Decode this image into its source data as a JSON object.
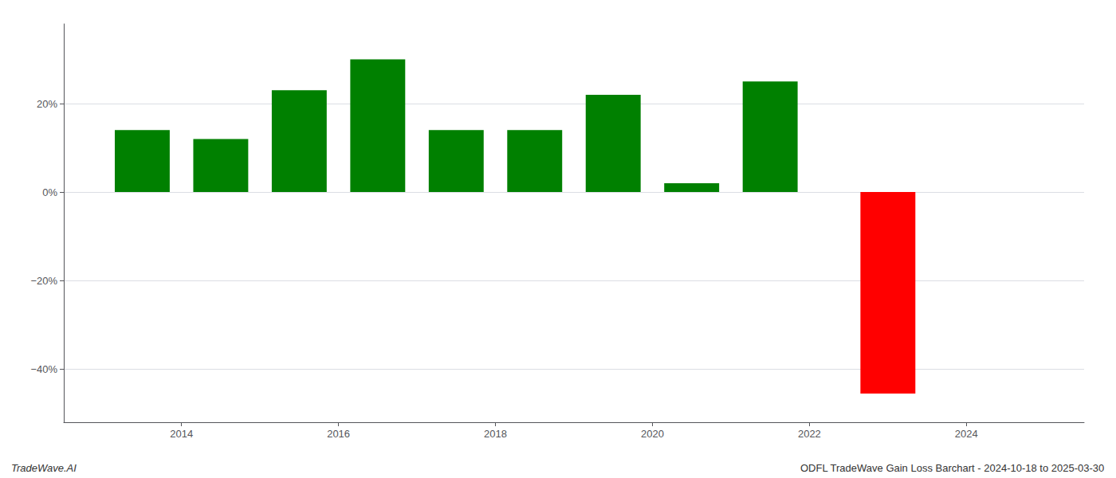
{
  "chart_data": {
    "type": "bar",
    "x": [
      2013.5,
      2014.5,
      2015.5,
      2016.5,
      2017.5,
      2018.5,
      2019.5,
      2020.5,
      2021.5,
      2023.0
    ],
    "values": [
      0.14,
      0.12,
      0.23,
      0.3,
      0.14,
      0.14,
      0.22,
      0.02,
      0.25,
      -0.455
    ],
    "colors": [
      "#008000",
      "#008000",
      "#008000",
      "#008000",
      "#008000",
      "#008000",
      "#008000",
      "#008000",
      "#008000",
      "#ff0000"
    ],
    "xlim": [
      2012.5,
      2025.5
    ],
    "xticks": [
      2014,
      2016,
      2018,
      2020,
      2022,
      2024
    ],
    "ylim": [
      -0.52,
      0.38
    ],
    "yticks": [
      {
        "value": -0.4,
        "label": "−40%"
      },
      {
        "value": -0.2,
        "label": "−20%"
      },
      {
        "value": 0.0,
        "label": "0%"
      },
      {
        "value": 0.2,
        "label": "20%"
      }
    ],
    "grid": true,
    "annotations": [
      "TradeWave.AI",
      "ODFL TradeWave Gain Loss Barchart - 2024-10-18 to 2025-03-30"
    ]
  }
}
